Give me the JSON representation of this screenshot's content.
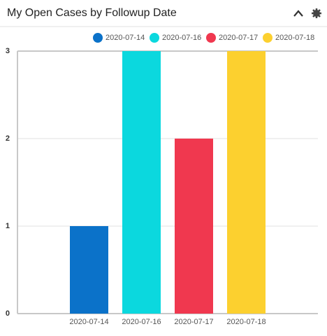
{
  "chart_data": {
    "type": "bar",
    "title": "My Open Cases by Followup Date",
    "categories": [
      "2020-07-14",
      "2020-07-16",
      "2020-07-17",
      "2020-07-18"
    ],
    "values": [
      1,
      3,
      2,
      3
    ],
    "colors": [
      "#0b72c9",
      "#0bd8de",
      "#f0384f",
      "#fcd02f"
    ],
    "ylim": [
      0,
      3
    ],
    "yticks": [
      0,
      1,
      2,
      3
    ],
    "grid": true,
    "legend": "top-right"
  }
}
